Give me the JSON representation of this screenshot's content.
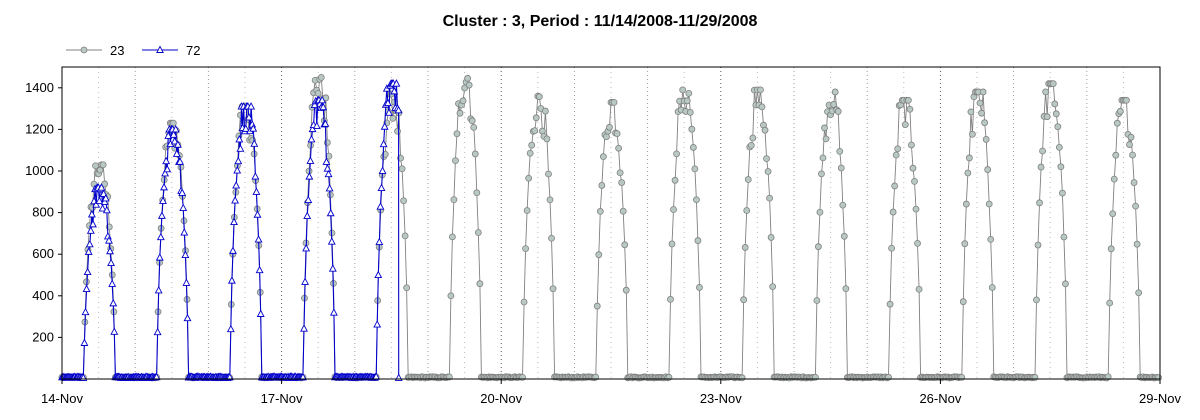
{
  "chart_data": {
    "type": "line",
    "title": "Cluster : 3, Period : 11/14/2008-11/29/2008",
    "xlabel": "",
    "ylabel": "",
    "x_range_days": [
      0,
      15
    ],
    "ylim": [
      0,
      1500
    ],
    "yticks": [
      200,
      400,
      600,
      800,
      1000,
      1200,
      1400
    ],
    "xticks": [
      {
        "day": 0,
        "label": "14-Nov"
      },
      {
        "day": 3,
        "label": "17-Nov"
      },
      {
        "day": 6,
        "label": "20-Nov"
      },
      {
        "day": 9,
        "label": "23-Nov"
      },
      {
        "day": 12,
        "label": "26-Nov"
      },
      {
        "day": 15,
        "label": "29-Nov"
      }
    ],
    "grid": "dotted-vertical",
    "legend_position": "top-left",
    "series": [
      {
        "name": "23",
        "color": "#808080",
        "marker": "circle",
        "marker_fill": "#b8c8c4",
        "days": [
          {
            "day": 0,
            "peak": 1030
          },
          {
            "day": 1,
            "peak": 1230
          },
          {
            "day": 2,
            "peak": 1310
          },
          {
            "day": 3,
            "peak": 1450
          },
          {
            "day": 4,
            "peak": 1370
          },
          {
            "day": 5,
            "peak": 1470
          },
          {
            "day": 6,
            "peak": 1360
          },
          {
            "day": 7,
            "peak": 1330
          },
          {
            "day": 8,
            "peak": 1390
          },
          {
            "day": 9,
            "peak": 1390
          },
          {
            "day": 10,
            "peak": 1380
          },
          {
            "day": 11,
            "peak": 1340
          },
          {
            "day": 12,
            "peak": 1380
          },
          {
            "day": 13,
            "peak": 1420
          },
          {
            "day": 14,
            "peak": 1340
          }
        ]
      },
      {
        "name": "72",
        "color": "#0000cc",
        "marker": "triangle",
        "marker_fill": "#ffffff",
        "days": [
          {
            "day": 0,
            "peak": 920
          },
          {
            "day": 1,
            "peak": 1200
          },
          {
            "day": 2,
            "peak": 1310
          },
          {
            "day": 3,
            "peak": 1340
          },
          {
            "day": 4,
            "peak": 1420
          }
        ]
      }
    ]
  }
}
